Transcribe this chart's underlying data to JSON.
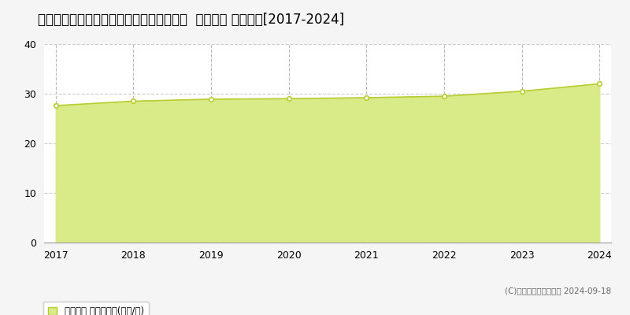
{
  "title": "千葉県成田市はなのき台１丁目２２番１３  公示地価 地価推移[2017-2024]",
  "years": [
    2017,
    2018,
    2019,
    2020,
    2021,
    2022,
    2023,
    2024
  ],
  "values": [
    27.6,
    28.5,
    28.9,
    29.0,
    29.2,
    29.5,
    30.5,
    32.0
  ],
  "line_color": "#b8cc30",
  "fill_color": "#d8eb88",
  "marker_color": "#ffffff",
  "marker_edge_color": "#b8cc30",
  "bg_color": "#f5f5f5",
  "plot_bg_color": "#ffffff",
  "grid_h_color": "#cccccc",
  "grid_v_color": "#bbbbbb",
  "ylim": [
    0,
    40
  ],
  "yticks": [
    0,
    10,
    20,
    30,
    40
  ],
  "title_fontsize": 12,
  "legend_label": "公示地価 平均坊単価(万円/坊)",
  "copyright_text": "(C)土地価格ドットコム 2024-09-18",
  "tick_fontsize": 9
}
